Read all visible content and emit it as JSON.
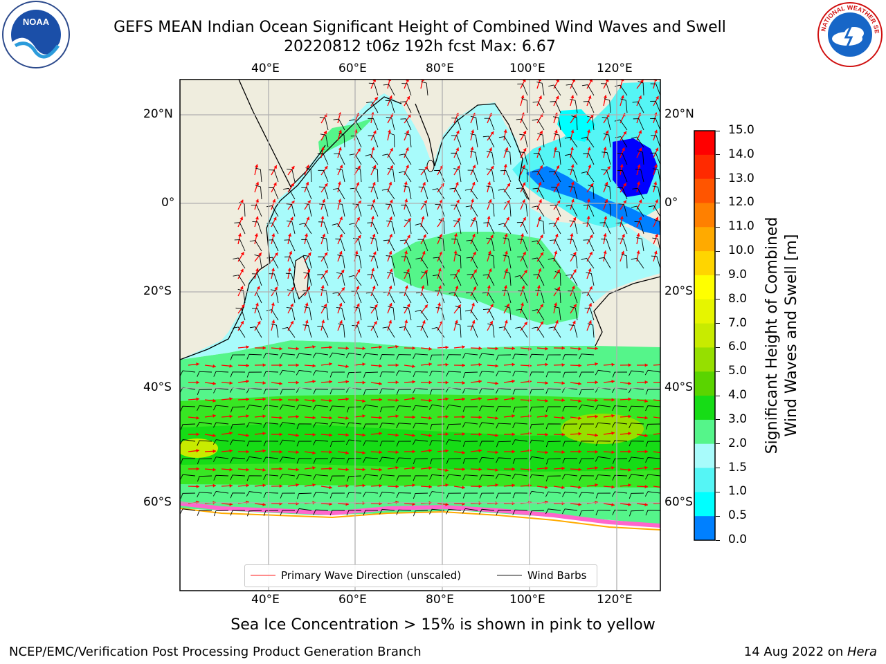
{
  "header": {
    "title_line1": "GEFS MEAN Indian Ocean Significant Height of Combined Wind Waves and Swell",
    "title_line2": "20220812 t06z 192h fcst   Max: 6.67"
  },
  "logos": {
    "left_name": "noaa-logo",
    "left_text": "NOAA",
    "right_name": "nws-logo",
    "right_text": "NATIONAL WEATHER SERVICE"
  },
  "map": {
    "lon_labels": [
      "40°E",
      "60°E",
      "80°E",
      "100°E",
      "120°E"
    ],
    "lat_labels": [
      "20°N",
      "0°",
      "20°S",
      "40°S",
      "60°S"
    ],
    "colors": {
      "ocean_low": "#a8fbfb",
      "ocean_mid": "#55f58a",
      "ocean_high": "#38e623",
      "land": "#efedde",
      "ice": "#ff66cc"
    }
  },
  "legend": {
    "wave_label": "Primary Wave Direction (unscaled)",
    "wave_color": "#ff0000",
    "barb_label": "Wind Barbs",
    "barb_color": "#000000"
  },
  "colorbar": {
    "label_line1": "Significant Height of Combined",
    "label_line2": "Wind Waves and Swell [m]",
    "ticks": [
      "15.0",
      "14.0",
      "13.0",
      "12.0",
      "11.0",
      "10.0",
      "9.0",
      "8.0",
      "7.0",
      "6.0",
      "5.0",
      "4.0",
      "3.0",
      "2.0",
      "1.5",
      "1.0",
      "0.5",
      "0.0"
    ],
    "colors": [
      "#ff0000",
      "#ff2a00",
      "#ff5500",
      "#ff8000",
      "#ffaa00",
      "#ffd500",
      "#ffff00",
      "#e6f500",
      "#c8eb00",
      "#96df00",
      "#5ad400",
      "#16dc16",
      "#55f58a",
      "#a8fbfb",
      "#55f5f5",
      "#00ffff",
      "#0080ff",
      "#0000ff"
    ]
  },
  "footer": {
    "sea_ice_note": "Sea Ice Concentration > 15% is shown in pink to yellow",
    "left": "NCEP/EMC/Verification Post Processing Product Generation Branch",
    "right_prefix": "14 Aug 2022 on ",
    "right_host": "Hera"
  }
}
